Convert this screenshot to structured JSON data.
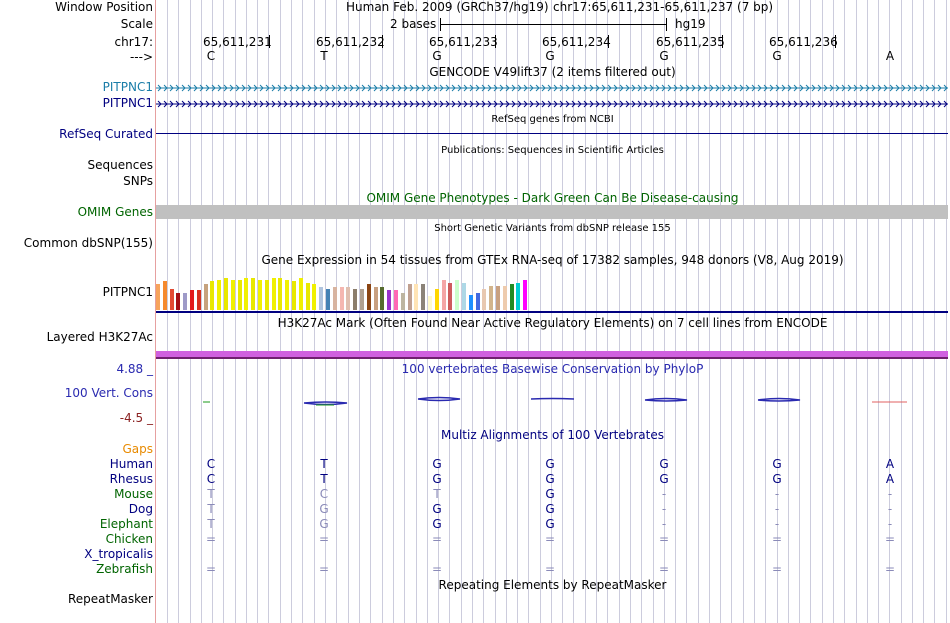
{
  "header": {
    "window_position_label": "Window Position",
    "assembly_title": "Human Feb. 2009 (GRCh37/hg19)",
    "position": "chr17:65,611,231-65,611,237 (7 bp)",
    "scale_label": "Scale",
    "scale_value": "2 bases",
    "scale_db": "hg19",
    "chrom_label": "chr17:",
    "arrow_label": "--->",
    "coordinates": [
      "65,611,231",
      "65,611,232",
      "65,611,233",
      "65,611,234",
      "65,611,235",
      "65,611,236"
    ],
    "bases": [
      "C",
      "T",
      "G",
      "G",
      "G",
      "G",
      "A"
    ]
  },
  "tracks": {
    "gencode_title": "GENCODE V49lift37 (2 items filtered out)",
    "gencode_items": [
      "PITPNC1",
      "PITPNC1"
    ],
    "refseq_title": "RefSeq genes from NCBI",
    "refseq_label": "RefSeq Curated",
    "pubs_title": "Publications: Sequences in Scientific Articles",
    "pubs_label": "Sequences",
    "snps_label": "SNPs",
    "omim_title": "OMIM Gene Phenotypes - Dark Green Can Be Disease-causing",
    "omim_label": "OMIM Genes",
    "dbsnp_title": "Short Genetic Variants from dbSNP release 155",
    "dbsnp_label": "Common dbSNP(155)",
    "gtex_title": "Gene Expression in 54 tissues from GTEx RNA-seq of 17382 samples, 948 donors (V8, Aug 2019)",
    "gtex_label": "PITPNC1",
    "h3k27ac_title": "H3K27Ac Mark (Often Found Near Active Regulatory Elements) on 7 cell lines from ENCODE",
    "h3k27ac_label": "Layered H3K27Ac",
    "phylop_max": "4.88 _",
    "phylop_min": "-4.5 _",
    "phylop_title": "100 vertebrates Basewise Conservation by PhyloP",
    "phylop_label": "100 Vert. Cons",
    "multiz_title": "Multiz Alignments of 100 Vertebrates",
    "gaps_label": "Gaps",
    "repeat_title": "Repeating Elements by RepeatMasker",
    "repeat_label": "RepeatMasker"
  },
  "gtex_bars": [
    {
      "color": "#f7a35c",
      "level": 0.85
    },
    {
      "color": "#f58a2e",
      "level": 0.95
    },
    {
      "color": "#e34a33",
      "level": 0.7
    },
    {
      "color": "#a50f15",
      "level": 0.55
    },
    {
      "color": "#9e9ac8",
      "level": 0.55
    },
    {
      "color": "#e31a1c",
      "level": 0.65
    },
    {
      "color": "#d7301f",
      "level": 0.65
    },
    {
      "color": "#c6a27d",
      "level": 0.85
    },
    {
      "color": "#e8e800",
      "level": 0.95
    },
    {
      "color": "#f0f000",
      "level": 1.0
    },
    {
      "color": "#e8e800",
      "level": 1.05
    },
    {
      "color": "#f0f000",
      "level": 1.0
    },
    {
      "color": "#e8e800",
      "level": 1.0
    },
    {
      "color": "#f0f000",
      "level": 1.05
    },
    {
      "color": "#e8e800",
      "level": 1.05
    },
    {
      "color": "#f0f000",
      "level": 1.0
    },
    {
      "color": "#e8e800",
      "level": 1.0
    },
    {
      "color": "#f0f000",
      "level": 1.05
    },
    {
      "color": "#e8e800",
      "level": 1.05
    },
    {
      "color": "#f0f000",
      "level": 1.0
    },
    {
      "color": "#e8e800",
      "level": 0.95
    },
    {
      "color": "#f0f000",
      "level": 1.05
    },
    {
      "color": "#e8e800",
      "level": 0.9
    },
    {
      "color": "#f0f000",
      "level": 0.85
    },
    {
      "color": "#b0c4de",
      "level": 0.75
    },
    {
      "color": "#4682b4",
      "level": 0.7
    },
    {
      "color": "#d8b4a0",
      "level": 0.75
    },
    {
      "color": "#f5b7b1",
      "level": 0.75
    },
    {
      "color": "#e0bfb0",
      "level": 0.75
    },
    {
      "color": "#8b7d6b",
      "level": 0.7
    },
    {
      "color": "#b0a090",
      "level": 0.7
    },
    {
      "color": "#8b4513",
      "level": 0.85
    },
    {
      "color": "#c8a080",
      "level": 0.75
    },
    {
      "color": "#556b2f",
      "level": 0.75
    },
    {
      "color": "#9932cc",
      "level": 0.65
    },
    {
      "color": "#ff69b4",
      "level": 0.65
    },
    {
      "color": "#bdb5a0",
      "level": 0.55
    },
    {
      "color": "#c0a090",
      "level": 0.85
    },
    {
      "color": "#ffe4b5",
      "level": 0.85
    },
    {
      "color": "#8b8378",
      "level": 0.85
    },
    {
      "color": "#fffacd",
      "level": 0.45
    },
    {
      "color": "#ffd700",
      "level": 0.7
    },
    {
      "color": "#f4a6a6",
      "level": 1.0
    },
    {
      "color": "#cd5c5c",
      "level": 0.9
    },
    {
      "color": "#ccffcc",
      "level": 1.0
    },
    {
      "color": "#add8e6",
      "level": 0.9
    },
    {
      "color": "#1e90ff",
      "level": 0.5
    },
    {
      "color": "#4169e1",
      "level": 0.55
    },
    {
      "color": "#e8c8b0",
      "level": 0.7
    },
    {
      "color": "#d2b48c",
      "level": 0.8
    },
    {
      "color": "#c8a080",
      "level": 0.8
    },
    {
      "color": "#eecbad",
      "level": 0.8
    },
    {
      "color": "#228b22",
      "level": 0.85
    },
    {
      "color": "#00ced1",
      "level": 0.9
    },
    {
      "color": "#ff00ff",
      "level": 1.0
    }
  ],
  "alignment": {
    "species": [
      {
        "name": "Human",
        "color": "#000080",
        "bases": [
          "C",
          "T",
          "G",
          "G",
          "G",
          "G",
          "A"
        ],
        "faint": [
          false,
          false,
          false,
          false,
          false,
          false,
          false
        ]
      },
      {
        "name": "Rhesus",
        "color": "#000080",
        "bases": [
          "C",
          "T",
          "G",
          "G",
          "G",
          "G",
          "A"
        ],
        "faint": [
          false,
          false,
          false,
          false,
          false,
          false,
          false
        ]
      },
      {
        "name": "Mouse",
        "color": "#006400",
        "bases": [
          "T",
          "C",
          "T",
          "G",
          "-",
          "-",
          "-"
        ],
        "faint": [
          true,
          true,
          true,
          false,
          true,
          true,
          true
        ]
      },
      {
        "name": "Dog",
        "color": "#000080",
        "bases": [
          "T",
          "G",
          "G",
          "G",
          "-",
          "-",
          "-"
        ],
        "faint": [
          true,
          true,
          false,
          false,
          true,
          true,
          true
        ]
      },
      {
        "name": "Elephant",
        "color": "#006400",
        "bases": [
          "T",
          "G",
          "G",
          "G",
          "-",
          "-",
          "-"
        ],
        "faint": [
          true,
          true,
          false,
          false,
          true,
          true,
          true
        ]
      },
      {
        "name": "Chicken",
        "color": "#006400",
        "bases": [
          "=",
          "=",
          "=",
          "=",
          "=",
          "=",
          "="
        ],
        "faint": [
          true,
          true,
          true,
          true,
          true,
          true,
          true
        ]
      },
      {
        "name": "X_tropicalis",
        "color": "#000080",
        "bases": [
          "",
          "",
          "",
          "",
          "",
          "",
          ""
        ],
        "faint": [
          true,
          true,
          true,
          true,
          true,
          true,
          true
        ]
      },
      {
        "name": "Zebrafish",
        "color": "#006400",
        "bases": [
          "=",
          "=",
          "=",
          "=",
          "=",
          "=",
          "="
        ],
        "faint": [
          true,
          true,
          true,
          true,
          true,
          true,
          true
        ]
      }
    ]
  },
  "colors": {
    "gencode_blue": "#1a7da8",
    "navy": "#000080",
    "omim_green": "#006400",
    "omim_bar": "#c0c0c0",
    "h3k27ac": "#d060e0",
    "phylop_blue": "#2a2ab0",
    "gaps_orange": "#e88a00",
    "phylop_min_color": "#8b2222"
  }
}
